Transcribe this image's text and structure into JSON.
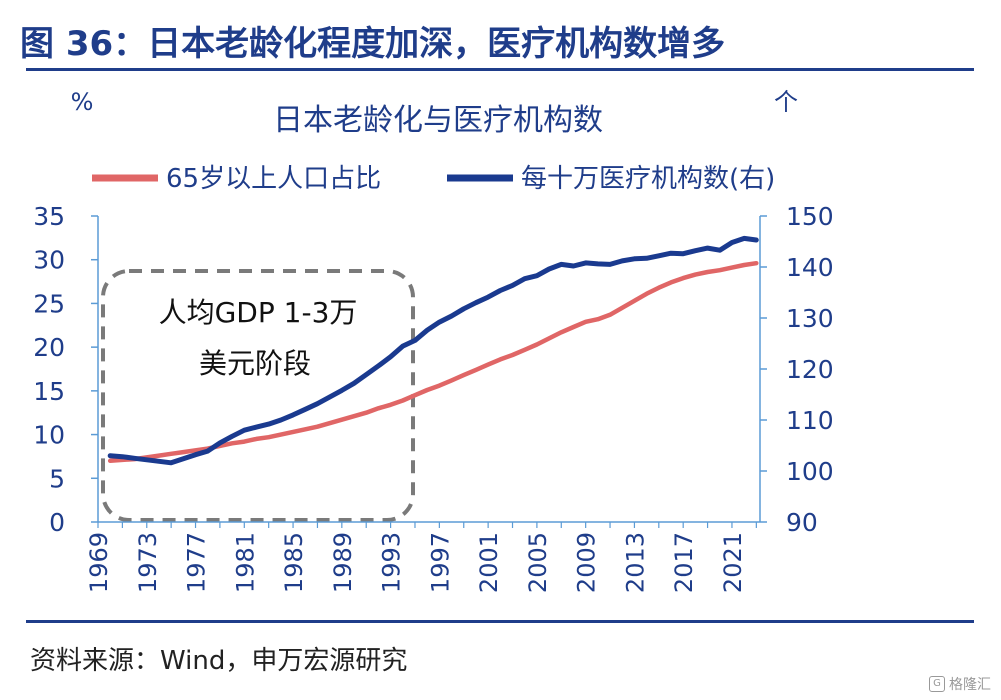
{
  "figure_title": "图 36：日本老龄化程度加深，医疗机构数增多",
  "source": "资料来源：Wind，申万宏源研究",
  "watermark": "格隆汇",
  "annotation": {
    "line1": "人均GDP 1-3万",
    "line2": "美元阶段"
  },
  "chart_data": {
    "type": "line",
    "title": "日本老龄化与医疗机构数",
    "left_unit": "%",
    "right_unit": "个",
    "x": [
      1970,
      1971,
      1972,
      1973,
      1974,
      1975,
      1976,
      1977,
      1978,
      1979,
      1980,
      1981,
      1982,
      1983,
      1984,
      1985,
      1986,
      1987,
      1988,
      1989,
      1990,
      1991,
      1992,
      1993,
      1994,
      1995,
      1996,
      1997,
      1998,
      1999,
      2000,
      2001,
      2002,
      2003,
      2004,
      2005,
      2006,
      2007,
      2008,
      2009,
      2010,
      2011,
      2012,
      2013,
      2014,
      2015,
      2016,
      2017,
      2018,
      2019,
      2020,
      2021,
      2022,
      2023
    ],
    "xticks": [
      "1969",
      "1973",
      "1977",
      "1981",
      "1985",
      "1989",
      "1993",
      "1997",
      "2001",
      "2005",
      "2009",
      "2013",
      "2017",
      "2021"
    ],
    "y_left": {
      "min": 0,
      "max": 35,
      "ticks": [
        "0",
        "5",
        "10",
        "15",
        "20",
        "25",
        "30",
        "35"
      ]
    },
    "y_right": {
      "min": 90,
      "max": 150,
      "ticks": [
        "90",
        "100",
        "110",
        "120",
        "130",
        "140",
        "150"
      ]
    },
    "series": [
      {
        "name": "65岁以上人口占比",
        "axis": "left",
        "color": "#e06666",
        "values": [
          7.0,
          7.1,
          7.2,
          7.4,
          7.6,
          7.8,
          8.0,
          8.2,
          8.4,
          8.7,
          9.0,
          9.2,
          9.5,
          9.7,
          10.0,
          10.3,
          10.6,
          10.9,
          11.3,
          11.7,
          12.1,
          12.5,
          13.0,
          13.4,
          13.9,
          14.5,
          15.1,
          15.6,
          16.2,
          16.8,
          17.4,
          18.0,
          18.6,
          19.1,
          19.7,
          20.3,
          21.0,
          21.7,
          22.3,
          22.9,
          23.2,
          23.7,
          24.5,
          25.3,
          26.1,
          26.8,
          27.4,
          27.9,
          28.3,
          28.6,
          28.8,
          29.1,
          29.4,
          29.6
        ]
      },
      {
        "name": "每十万医疗机构数(右)",
        "axis": "right",
        "color": "#1a3a8f",
        "values": [
          103,
          102.8,
          102.5,
          102.2,
          101.9,
          101.6,
          102.4,
          103.2,
          103.9,
          105.5,
          106.8,
          108.0,
          108.6,
          109.2,
          110.0,
          111.0,
          112.1,
          113.2,
          114.5,
          115.8,
          117.2,
          118.9,
          120.6,
          122.4,
          124.5,
          125.6,
          127.6,
          129.2,
          130.4,
          131.8,
          133.0,
          134.1,
          135.4,
          136.4,
          137.7,
          138.3,
          139.6,
          140.5,
          140.2,
          140.8,
          140.6,
          140.5,
          141.2,
          141.6,
          141.7,
          142.2,
          142.7,
          142.6,
          143.2,
          143.7,
          143.3,
          144.8,
          145.6,
          145.3
        ]
      }
    ]
  }
}
